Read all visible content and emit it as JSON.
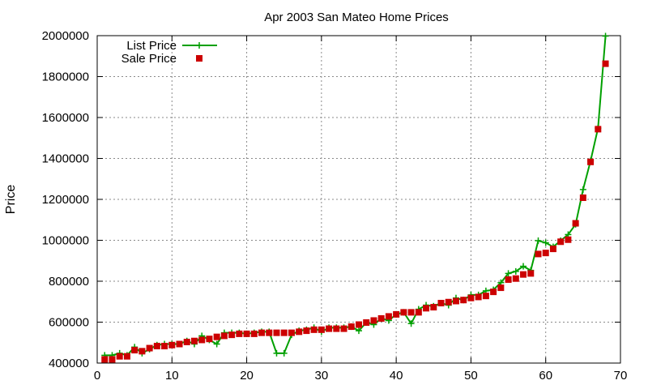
{
  "chart_data": {
    "type": "line",
    "title": "Apr 2003 San Mateo Home Prices",
    "xlabel": "",
    "ylabel": "Price",
    "xlim": [
      0,
      70
    ],
    "ylim": [
      400000,
      2000000
    ],
    "xticks": [
      0,
      10,
      20,
      30,
      40,
      50,
      60,
      70
    ],
    "yticks": [
      400000,
      600000,
      800000,
      1000000,
      1200000,
      1400000,
      1600000,
      1800000,
      2000000
    ],
    "grid": true,
    "legend": "top-left",
    "x": [
      1,
      2,
      3,
      4,
      5,
      6,
      7,
      8,
      9,
      10,
      11,
      12,
      13,
      14,
      15,
      16,
      17,
      18,
      19,
      20,
      21,
      22,
      23,
      24,
      25,
      26,
      27,
      28,
      29,
      30,
      31,
      32,
      33,
      34,
      35,
      36,
      37,
      38,
      39,
      40,
      41,
      42,
      43,
      44,
      45,
      46,
      47,
      48,
      49,
      50,
      51,
      52,
      53,
      54,
      55,
      56,
      57,
      58,
      59,
      60,
      61,
      62,
      63,
      64,
      65,
      66,
      67,
      68
    ],
    "series": [
      {
        "name": "List Price",
        "color": "#00a000",
        "marker": "plus",
        "values": [
          438000,
          438000,
          448000,
          438000,
          478000,
          448000,
          468000,
          488000,
          493000,
          493000,
          493000,
          508000,
          493000,
          533000,
          513000,
          493000,
          548000,
          548000,
          548000,
          543000,
          548000,
          553000,
          553000,
          448000,
          448000,
          538000,
          558000,
          563000,
          573000,
          553000,
          573000,
          573000,
          573000,
          578000,
          558000,
          598000,
          588000,
          618000,
          608000,
          638000,
          648000,
          593000,
          663000,
          683000,
          678000,
          693000,
          683000,
          718000,
          708000,
          733000,
          733000,
          753000,
          758000,
          793000,
          838000,
          848000,
          873000,
          853000,
          998000,
          988000,
          968000,
          998000,
          1028000,
          1078000,
          1248000,
          1388000,
          1548000,
          1998000
        ]
      },
      {
        "name": "Sale Price",
        "color": "#cc0000",
        "marker": "square",
        "values": [
          418000,
          418000,
          433000,
          433000,
          463000,
          458000,
          473000,
          483000,
          483000,
          488000,
          493000,
          503000,
          508000,
          513000,
          518000,
          528000,
          533000,
          538000,
          543000,
          543000,
          543000,
          548000,
          548000,
          548000,
          548000,
          548000,
          553000,
          558000,
          563000,
          563000,
          568000,
          568000,
          568000,
          578000,
          588000,
          598000,
          608000,
          618000,
          628000,
          638000,
          648000,
          648000,
          648000,
          668000,
          673000,
          693000,
          698000,
          703000,
          708000,
          718000,
          723000,
          728000,
          748000,
          768000,
          808000,
          813000,
          833000,
          838000,
          933000,
          938000,
          958000,
          993000,
          1003000,
          1083000,
          1208000,
          1383000,
          1543000,
          1863000
        ]
      }
    ]
  }
}
